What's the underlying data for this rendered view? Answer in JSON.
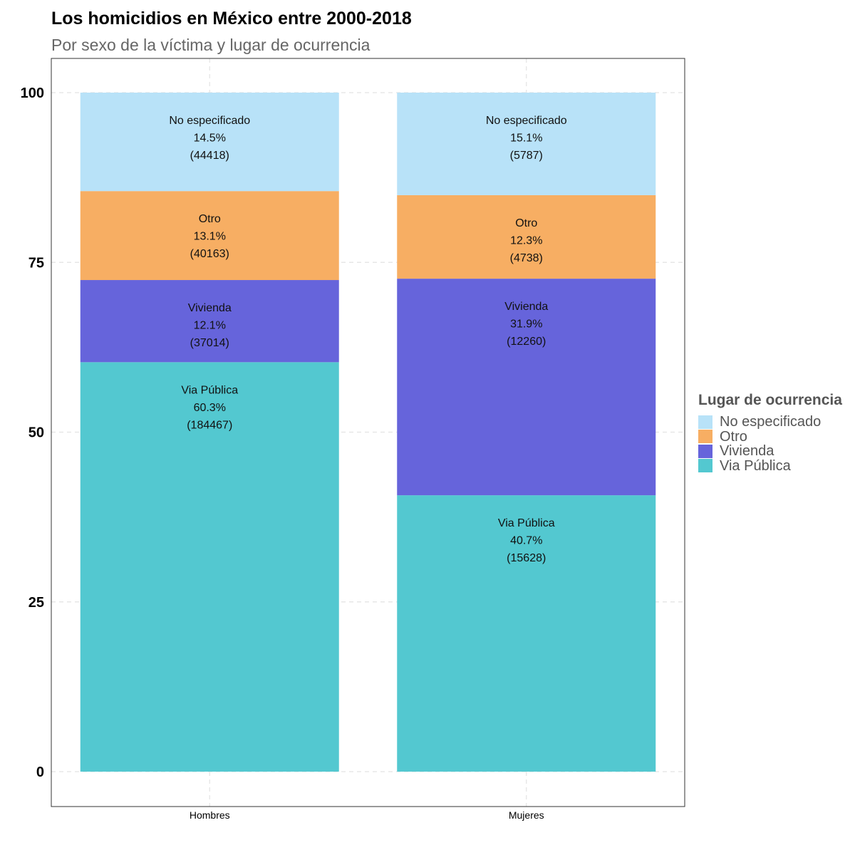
{
  "chart_data": {
    "type": "bar",
    "stacked": true,
    "title": "Los homicidios en México entre 2000-2018",
    "subtitle": "Por sexo de la víctima y lugar de ocurrencia",
    "xlabel": "",
    "ylabel": "",
    "ylim": [
      -5,
      105
    ],
    "yticks": [
      0,
      25,
      50,
      75,
      100
    ],
    "grid": true,
    "legend_position": "right",
    "legend_title": "Lugar de ocurrencia",
    "categories": [
      "Hombres",
      "Mujeres"
    ],
    "series": [
      {
        "name": "Via Pública",
        "color": "#53C8D0",
        "values": [
          60.3,
          40.7
        ],
        "pct_labels": [
          "60.3%",
          "40.7%"
        ],
        "count_labels": [
          "(184467)",
          "(15628)"
        ]
      },
      {
        "name": "Vivienda",
        "color": "#6664DB",
        "values": [
          12.1,
          31.9
        ],
        "pct_labels": [
          "12.1%",
          "31.9%"
        ],
        "count_labels": [
          "(37014)",
          "(12260)"
        ]
      },
      {
        "name": "Otro",
        "color": "#F7AE63",
        "values": [
          13.1,
          12.3
        ],
        "pct_labels": [
          "13.1%",
          "12.3%"
        ],
        "count_labels": [
          "(40163)",
          "(4738)"
        ]
      },
      {
        "name": "No especificado",
        "color": "#B8E2F8",
        "values": [
          14.5,
          15.1
        ],
        "pct_labels": [
          "14.5%",
          "15.1%"
        ],
        "count_labels": [
          "(44418)",
          "(5787)"
        ]
      }
    ],
    "legend_order": [
      "No especificado",
      "Otro",
      "Vivienda",
      "Via Pública"
    ]
  }
}
